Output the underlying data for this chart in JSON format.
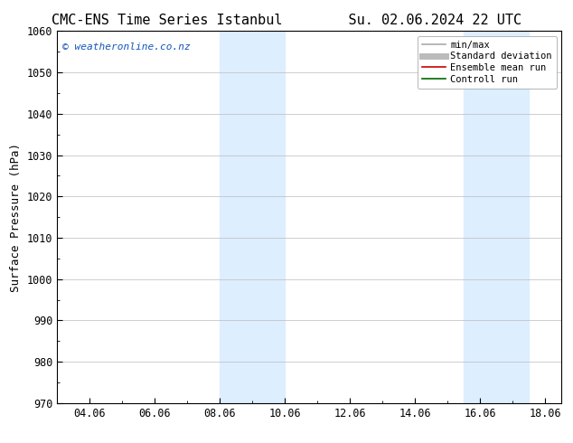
{
  "title": "CMC-ENS Time Series Istanbul",
  "title2": "Su. 02.06.2024 22 UTC",
  "ylabel": "Surface Pressure (hPa)",
  "ylim": [
    970,
    1060
  ],
  "yticks": [
    970,
    980,
    990,
    1000,
    1010,
    1020,
    1030,
    1040,
    1050,
    1060
  ],
  "xlim": [
    0.0,
    15.5
  ],
  "xtick_labels": [
    "04.06",
    "06.06",
    "08.06",
    "10.06",
    "12.06",
    "14.06",
    "16.06",
    "18.06"
  ],
  "xtick_positions": [
    1.0,
    3.0,
    5.0,
    7.0,
    9.0,
    11.0,
    13.0,
    15.0
  ],
  "shaded_bands": [
    {
      "x_start": 5.0,
      "x_end": 7.0
    },
    {
      "x_start": 12.5,
      "x_end": 14.5
    }
  ],
  "band_color": "#ddeeff",
  "watermark": "© weatheronline.co.nz",
  "legend_items": [
    {
      "label": "min/max",
      "color": "#aaaaaa",
      "lw": 1.2
    },
    {
      "label": "Standard deviation",
      "color": "#bbbbbb",
      "lw": 5
    },
    {
      "label": "Ensemble mean run",
      "color": "#cc0000",
      "lw": 1.2
    },
    {
      "label": "Controll run",
      "color": "#006600",
      "lw": 1.2
    }
  ],
  "bg_color": "#ffffff",
  "axes_bg_color": "#ffffff",
  "grid_color": "#bbbbbb",
  "fig_width": 6.34,
  "fig_height": 4.9,
  "dpi": 100,
  "title_fontsize": 11,
  "label_fontsize": 9,
  "tick_fontsize": 8.5,
  "legend_fontsize": 7.5,
  "watermark_fontsize": 8,
  "font_family": "DejaVu Sans Mono"
}
